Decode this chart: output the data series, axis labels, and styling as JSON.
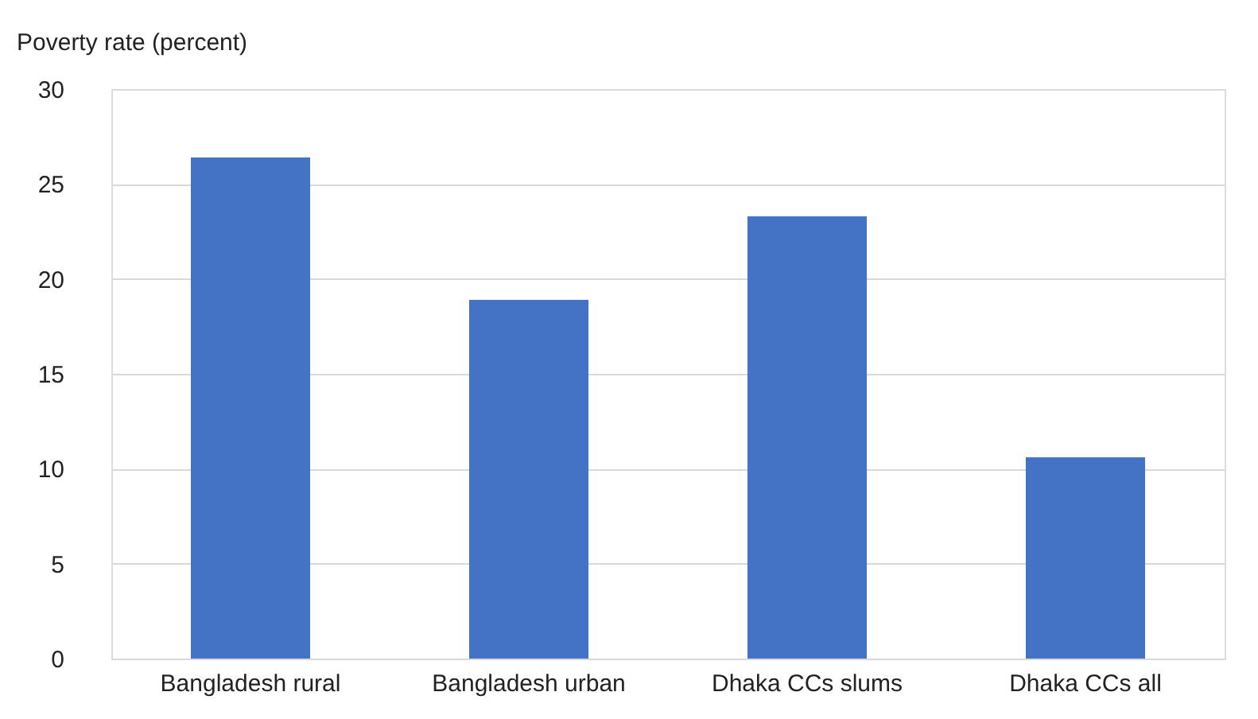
{
  "chart_data": {
    "type": "bar",
    "ylabel": "Poverty rate (percent)",
    "categories": [
      "Bangladesh rural",
      "Bangladesh urban",
      "Dhaka CCs slums",
      "Dhaka CCs all"
    ],
    "values": [
      26.4,
      18.9,
      23.3,
      10.6
    ],
    "color": "#4472c4",
    "ylim": [
      0,
      30
    ],
    "yticks": [
      0,
      5,
      10,
      15,
      20,
      25,
      30
    ],
    "grid": "y"
  }
}
